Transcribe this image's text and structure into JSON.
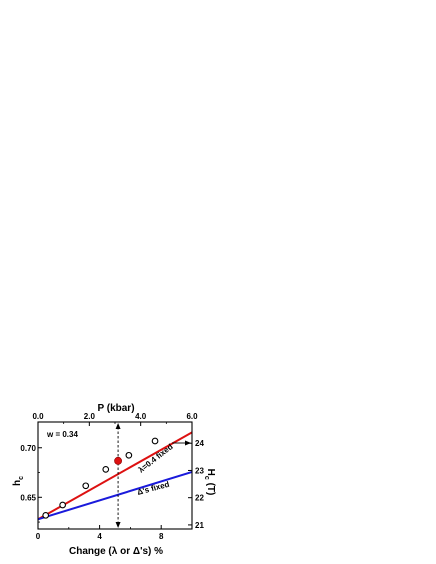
{
  "chart_data": {
    "type": "scatter",
    "xlabel_bottom": "Change (λ or Δ's) %",
    "xlabel_top": "P (kbar)",
    "ylabel_left": "h",
    "ylabel_left_sub": "c",
    "ylabel_right": "H",
    "ylabel_right_sub": "c",
    "ylabel_right_unit": " (T)",
    "bottom_axis": {
      "xlim": [
        0,
        10
      ],
      "ticks": [
        0,
        4,
        8
      ],
      "tick_labels": [
        "0",
        "4",
        "8"
      ]
    },
    "top_axis": {
      "xlim": [
        0,
        6.0
      ],
      "ticks": [
        0.0,
        2.0,
        4.0,
        6.0
      ],
      "tick_labels": [
        "0.0",
        "2.0",
        "4.0",
        "6.0"
      ]
    },
    "left_axis": {
      "ylim": [
        0.618,
        0.726
      ],
      "ticks": [
        0.65,
        0.7
      ],
      "tick_labels": [
        "0.65",
        "0.70"
      ]
    },
    "right_axis": {
      "ylim": [
        20.85,
        24.78
      ],
      "ticks": [
        21,
        22,
        23,
        24
      ],
      "tick_labels": [
        "21",
        "22",
        "23",
        "24"
      ]
    },
    "series": [
      {
        "name": "λ=0.4 fixed",
        "kind": "line",
        "color": "#dd1111",
        "x": [
          0,
          10
        ],
        "y": [
          0.6278,
          0.7155
        ]
      },
      {
        "name": "Δ's fixed",
        "kind": "line",
        "color": "#1a1adb",
        "x": [
          0,
          10
        ],
        "y": [
          0.6278,
          0.6755
        ]
      },
      {
        "kind": "markers-open",
        "color": "#000000",
        "x": [
          0.5,
          1.6,
          3.1,
          4.4,
          5.9,
          7.6
        ],
        "y": [
          0.6318,
          0.6422,
          0.6616,
          0.6782,
          0.6924,
          0.7068
        ]
      },
      {
        "kind": "marker-filled",
        "color": "#dd1111",
        "x": [
          5.2
        ],
        "y": [
          0.6868
        ]
      }
    ],
    "marker_line_x": 5.2,
    "w_label": "w = 0.34",
    "annotations": {
      "red_line": "λ=0.4 fixed",
      "blue_line": "Δ's fixed"
    }
  }
}
